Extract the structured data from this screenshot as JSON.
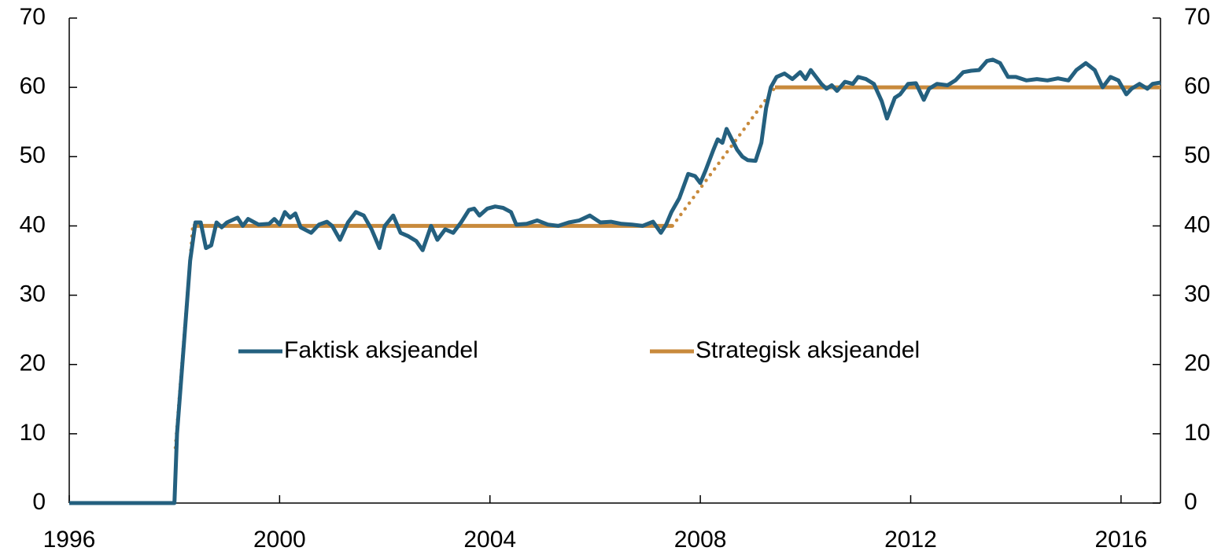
{
  "chart_data": {
    "type": "line",
    "xlim": [
      1996,
      2016.75
    ],
    "xticks": [
      1996,
      2000,
      2004,
      2008,
      2012,
      2016
    ],
    "ylim": [
      0,
      70
    ],
    "yticks": [
      0,
      10,
      20,
      30,
      40,
      50,
      60,
      70
    ],
    "y2lim": [
      0,
      70
    ],
    "y2ticks": [
      0,
      10,
      20,
      30,
      40,
      50,
      60,
      70
    ],
    "series": [
      {
        "name": "Faktisk aksjeandel",
        "color": "#24607f",
        "x": [
          1996,
          1998.0,
          1998.05,
          1998.2,
          1998.3,
          1998.4,
          1998.5,
          1998.6,
          1998.7,
          1998.8,
          1998.9,
          1999.0,
          1999.2,
          1999.3,
          1999.4,
          1999.6,
          1999.8,
          1999.9,
          2000.0,
          2000.1,
          2000.2,
          2000.3,
          2000.4,
          2000.6,
          2000.75,
          2000.9,
          2001.0,
          2001.15,
          2001.3,
          2001.45,
          2001.6,
          2001.75,
          2001.9,
          2002.0,
          2002.16,
          2002.3,
          2002.45,
          2002.6,
          2002.72,
          2002.88,
          2003.0,
          2003.15,
          2003.3,
          2003.45,
          2003.6,
          2003.7,
          2003.8,
          2003.95,
          2004.1,
          2004.25,
          2004.4,
          2004.5,
          2004.7,
          2004.9,
          2005.1,
          2005.3,
          2005.5,
          2005.7,
          2005.9,
          2006.1,
          2006.3,
          2006.5,
          2006.7,
          2006.9,
          2007.1,
          2007.25,
          2007.35,
          2007.45,
          2007.6,
          2007.77,
          2007.9,
          2008.0,
          2008.1,
          2008.25,
          2008.33,
          2008.42,
          2008.5,
          2008.6,
          2008.7,
          2008.8,
          2008.9,
          2009.05,
          2009.16,
          2009.25,
          2009.34,
          2009.45,
          2009.6,
          2009.75,
          2009.9,
          2010.0,
          2010.1,
          2010.2,
          2010.3,
          2010.4,
          2010.5,
          2010.6,
          2010.75,
          2010.9,
          2011.0,
          2011.15,
          2011.3,
          2011.45,
          2011.55,
          2011.7,
          2011.8,
          2011.95,
          2012.1,
          2012.25,
          2012.35,
          2012.5,
          2012.7,
          2012.85,
          2013.0,
          2013.15,
          2013.3,
          2013.45,
          2013.56,
          2013.7,
          2013.85,
          2014.0,
          2014.2,
          2014.4,
          2014.6,
          2014.8,
          2015.0,
          2015.15,
          2015.33,
          2015.5,
          2015.65,
          2015.8,
          2015.95,
          2016.1,
          2016.2,
          2016.35,
          2016.5,
          2016.6,
          2016.75
        ],
        "values": [
          0,
          0,
          10,
          25,
          35,
          40.5,
          40.5,
          36.8,
          37.2,
          40.5,
          39.8,
          40.5,
          41.2,
          40,
          41,
          40.2,
          40.3,
          41,
          40.2,
          42,
          41.2,
          41.8,
          39.8,
          39,
          40.2,
          40.6,
          40,
          38,
          40.5,
          42,
          41.5,
          39.5,
          36.8,
          40,
          41.5,
          39,
          38.5,
          37.8,
          36.5,
          40,
          38,
          39.5,
          39,
          40.5,
          42.3,
          42.5,
          41.5,
          42.5,
          42.8,
          42.6,
          42,
          40.2,
          40.3,
          40.8,
          40.2,
          40,
          40.5,
          40.8,
          41.5,
          40.5,
          40.6,
          40.3,
          40.2,
          40,
          40.6,
          39,
          40.2,
          42,
          44,
          47.5,
          47.2,
          46.2,
          48,
          51,
          52.5,
          52,
          54,
          52.5,
          51,
          50,
          49.5,
          49.4,
          52,
          57,
          60,
          61.5,
          62,
          61.2,
          62.2,
          61.2,
          62.5,
          61.5,
          60.5,
          59.8,
          60.3,
          59.5,
          60.8,
          60.5,
          61.5,
          61.2,
          60.5,
          58,
          55.5,
          58.5,
          59,
          60.5,
          60.6,
          58.2,
          59.8,
          60.5,
          60.3,
          61,
          62.2,
          62.4,
          62.5,
          63.8,
          64,
          63.5,
          61.5,
          61.5,
          61,
          61.2,
          61,
          61.3,
          61,
          62.5,
          63.5,
          62.5,
          60,
          61.5,
          61,
          59,
          59.8,
          60.5,
          59.8,
          60.5,
          60.7
        ]
      },
      {
        "name": "Strategisk aksjeandel",
        "color": "#c88a3c",
        "x": [
          1996,
          1998.0,
          null,
          1998.35,
          2007.47,
          null,
          2009.42,
          2016.75
        ],
        "values": [
          0,
          0,
          null,
          40,
          40,
          null,
          60,
          60
        ]
      },
      {
        "color": "#c88a3c",
        "line_style": "dotted",
        "x": [
          1998.02,
          1998.35,
          null,
          2007.47,
          2009.42
        ],
        "values": [
          8,
          40,
          null,
          40,
          60
        ]
      }
    ]
  }
}
